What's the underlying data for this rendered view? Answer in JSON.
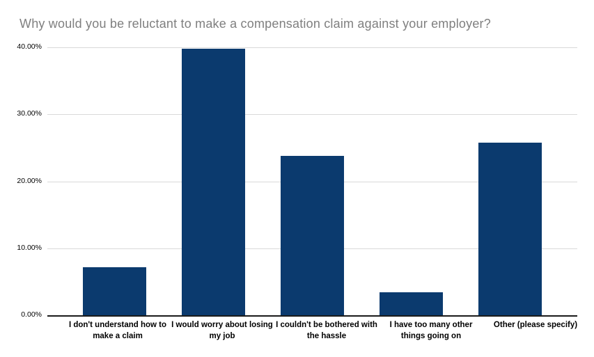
{
  "chart_data": {
    "type": "bar",
    "title": "Why would you be reluctant to make a compensation claim against your employer?",
    "categories": [
      "I don't understand how to make a claim",
      "I would worry about losing my job",
      "I couldn't be bothered with the hassle",
      "I have too many other things going on",
      "Other (please specify)"
    ],
    "values": [
      7.2,
      39.8,
      23.8,
      3.4,
      25.8
    ],
    "unit": "%",
    "xlabel": "",
    "ylabel": "",
    "ylim": [
      0,
      40
    ],
    "yticks": [
      {
        "value": 0,
        "label": "0.00%"
      },
      {
        "value": 10,
        "label": "10.00%"
      },
      {
        "value": 20,
        "label": "20.00%"
      },
      {
        "value": 30,
        "label": "30.00%"
      },
      {
        "value": 40,
        "label": "40.00%"
      }
    ],
    "grid": true,
    "legend": "none",
    "colors": {
      "bar": "#0b3a6e",
      "gridline": "#d9d9d9",
      "axis": "#1a1a1a",
      "title": "#7f7f7f",
      "tick_label": "#000000",
      "category_label": "#000000",
      "background": "#ffffff"
    }
  }
}
